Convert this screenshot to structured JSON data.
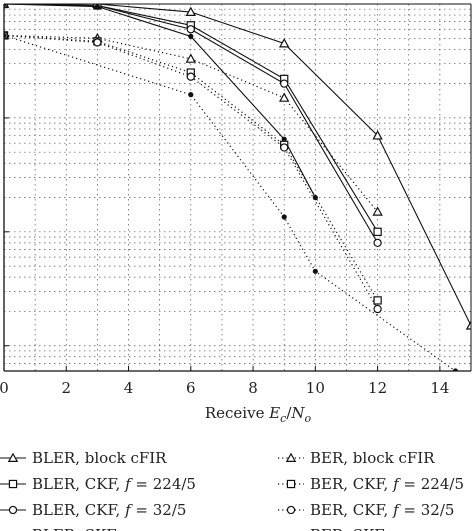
{
  "chart_data": {
    "type": "line",
    "xlabel": "Receive E_c/N_o",
    "xlim": [
      0,
      15
    ],
    "x_ticks": [
      "0",
      "2",
      "4",
      "6",
      "8",
      "10",
      "12",
      "14"
    ],
    "ylabel": "",
    "y_scale": "log",
    "ylim": [
      0.0006,
      1
    ],
    "grid": true,
    "legend_position": "bottom",
    "series": [
      {
        "name": "BLER, block cFIR",
        "line": "solid",
        "marker": "triangle",
        "x": [
          0,
          3,
          6,
          9,
          12,
          15
        ],
        "y": [
          1.0,
          1.0,
          0.85,
          0.45,
          0.07,
          0.0015
        ]
      },
      {
        "name": "BLER, CKF, f = 224/5",
        "line": "solid",
        "marker": "square",
        "x": [
          0,
          3,
          6,
          9,
          12
        ],
        "y": [
          1.0,
          0.97,
          0.65,
          0.22,
          0.01
        ]
      },
      {
        "name": "BLER, CKF, f = 32/5",
        "line": "solid",
        "marker": "circle",
        "x": [
          0,
          3,
          6,
          9,
          12
        ],
        "y": [
          1.0,
          0.97,
          0.6,
          0.2,
          0.008
        ]
      },
      {
        "name": "BLER, SKF",
        "line": "solid",
        "marker": "star",
        "x": [
          0,
          3,
          6,
          9,
          10
        ],
        "y": [
          1.0,
          0.95,
          0.52,
          0.065,
          0.02
        ]
      },
      {
        "name": "BER, block cFIR",
        "line": "dotted",
        "marker": "triangle",
        "x": [
          0,
          3,
          6,
          9,
          12
        ],
        "y": [
          0.53,
          0.5,
          0.33,
          0.15,
          0.015
        ]
      },
      {
        "name": "BER, CKF, f = 224/5",
        "line": "dotted",
        "marker": "square",
        "x": [
          0,
          3,
          6,
          9,
          12
        ],
        "y": [
          0.53,
          0.47,
          0.25,
          0.058,
          0.0025
        ]
      },
      {
        "name": "BER, CKF, f = 32/5",
        "line": "dotted",
        "marker": "circle",
        "x": [
          0,
          3,
          6,
          9,
          12
        ],
        "y": [
          0.53,
          0.46,
          0.23,
          0.055,
          0.0021
        ]
      },
      {
        "name": "BER, SKF",
        "line": "dotted",
        "marker": "star",
        "x": [
          0,
          6,
          9,
          10,
          14.5
        ],
        "y": [
          0.53,
          0.16,
          0.0135,
          0.0045,
          0.0006
        ]
      }
    ]
  },
  "legend": [
    {
      "text": "BLER, block cFIR"
    },
    {
      "text": "BER, block cFIR"
    },
    {
      "text": "BLER, CKF, f = 224/5"
    },
    {
      "text": "BER, CKF, f = 224/5"
    },
    {
      "text": "BLER, CKF, f = 32/5"
    },
    {
      "text": "BER, CKF, f = 32/5"
    },
    {
      "text": "BLER, SKF"
    },
    {
      "text": "BER, SKF"
    }
  ]
}
